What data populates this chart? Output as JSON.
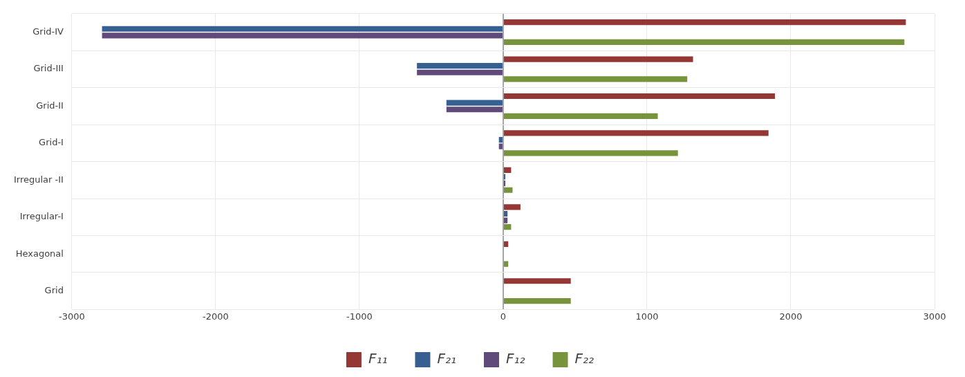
{
  "chart_data": {
    "type": "bar",
    "orientation": "horizontal",
    "categories": [
      "Grid-IV",
      "Grid-III",
      "Grid-II",
      "Grid-I",
      "Irregular -II",
      "Irregular-I",
      "Hexagonal",
      "Grid"
    ],
    "series": [
      {
        "name": "F₁₁",
        "color": "#953735",
        "values": [
          2800,
          1320,
          1890,
          1845,
          55,
          120,
          35,
          470
        ]
      },
      {
        "name": "F₂₁",
        "color": "#376092",
        "values": [
          -2790,
          -600,
          -395,
          -30,
          15,
          30,
          null,
          0
        ]
      },
      {
        "name": "F₁₂",
        "color": "#604a7b",
        "values": [
          -2790,
          -600,
          -395,
          -30,
          15,
          30,
          null,
          0
        ]
      },
      {
        "name": "F₂₂",
        "color": "#77933c",
        "values": [
          2790,
          1280,
          1075,
          1215,
          65,
          55,
          35,
          470
        ]
      }
    ],
    "xlim": [
      -3000,
      3000
    ],
    "xticks": [
      -3000,
      -2000,
      -1000,
      0,
      1000,
      2000,
      3000
    ],
    "grid": true,
    "legend": "bottom"
  }
}
